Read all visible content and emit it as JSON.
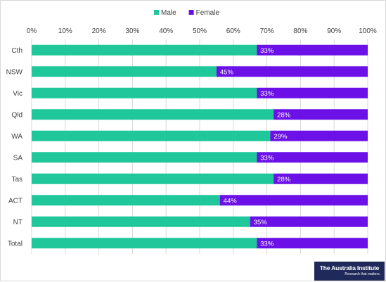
{
  "chart_data": {
    "type": "bar",
    "orientation": "horizontal",
    "stacked": "100%",
    "categories": [
      "Cth",
      "NSW",
      "Vic",
      "Qld",
      "WA",
      "SA",
      "Tas",
      "ACT",
      "NT",
      "Total"
    ],
    "series": [
      {
        "name": "Male",
        "color": "#1fc79a",
        "values": [
          67,
          55,
          67,
          72,
          71,
          67,
          72,
          56,
          65,
          67
        ]
      },
      {
        "name": "Female",
        "color": "#6b10e6",
        "values": [
          33,
          45,
          33,
          28,
          29,
          33,
          28,
          44,
          35,
          33
        ],
        "data_labels": [
          "33%",
          "45%",
          "33%",
          "28%",
          "29%",
          "33%",
          "28%",
          "44%",
          "35%",
          "33%"
        ]
      }
    ],
    "x_ticks": [
      "0%",
      "10%",
      "20%",
      "30%",
      "40%",
      "50%",
      "60%",
      "70%",
      "80%",
      "90%",
      "100%"
    ],
    "xlim": [
      0,
      100
    ],
    "xaxis_position": "top",
    "grid": true,
    "legend": {
      "position": "top",
      "entries": [
        "Male",
        "Female"
      ]
    }
  },
  "branding": {
    "logo_text": "The Australia Institute",
    "logo_tagline": "Research that matters."
  }
}
